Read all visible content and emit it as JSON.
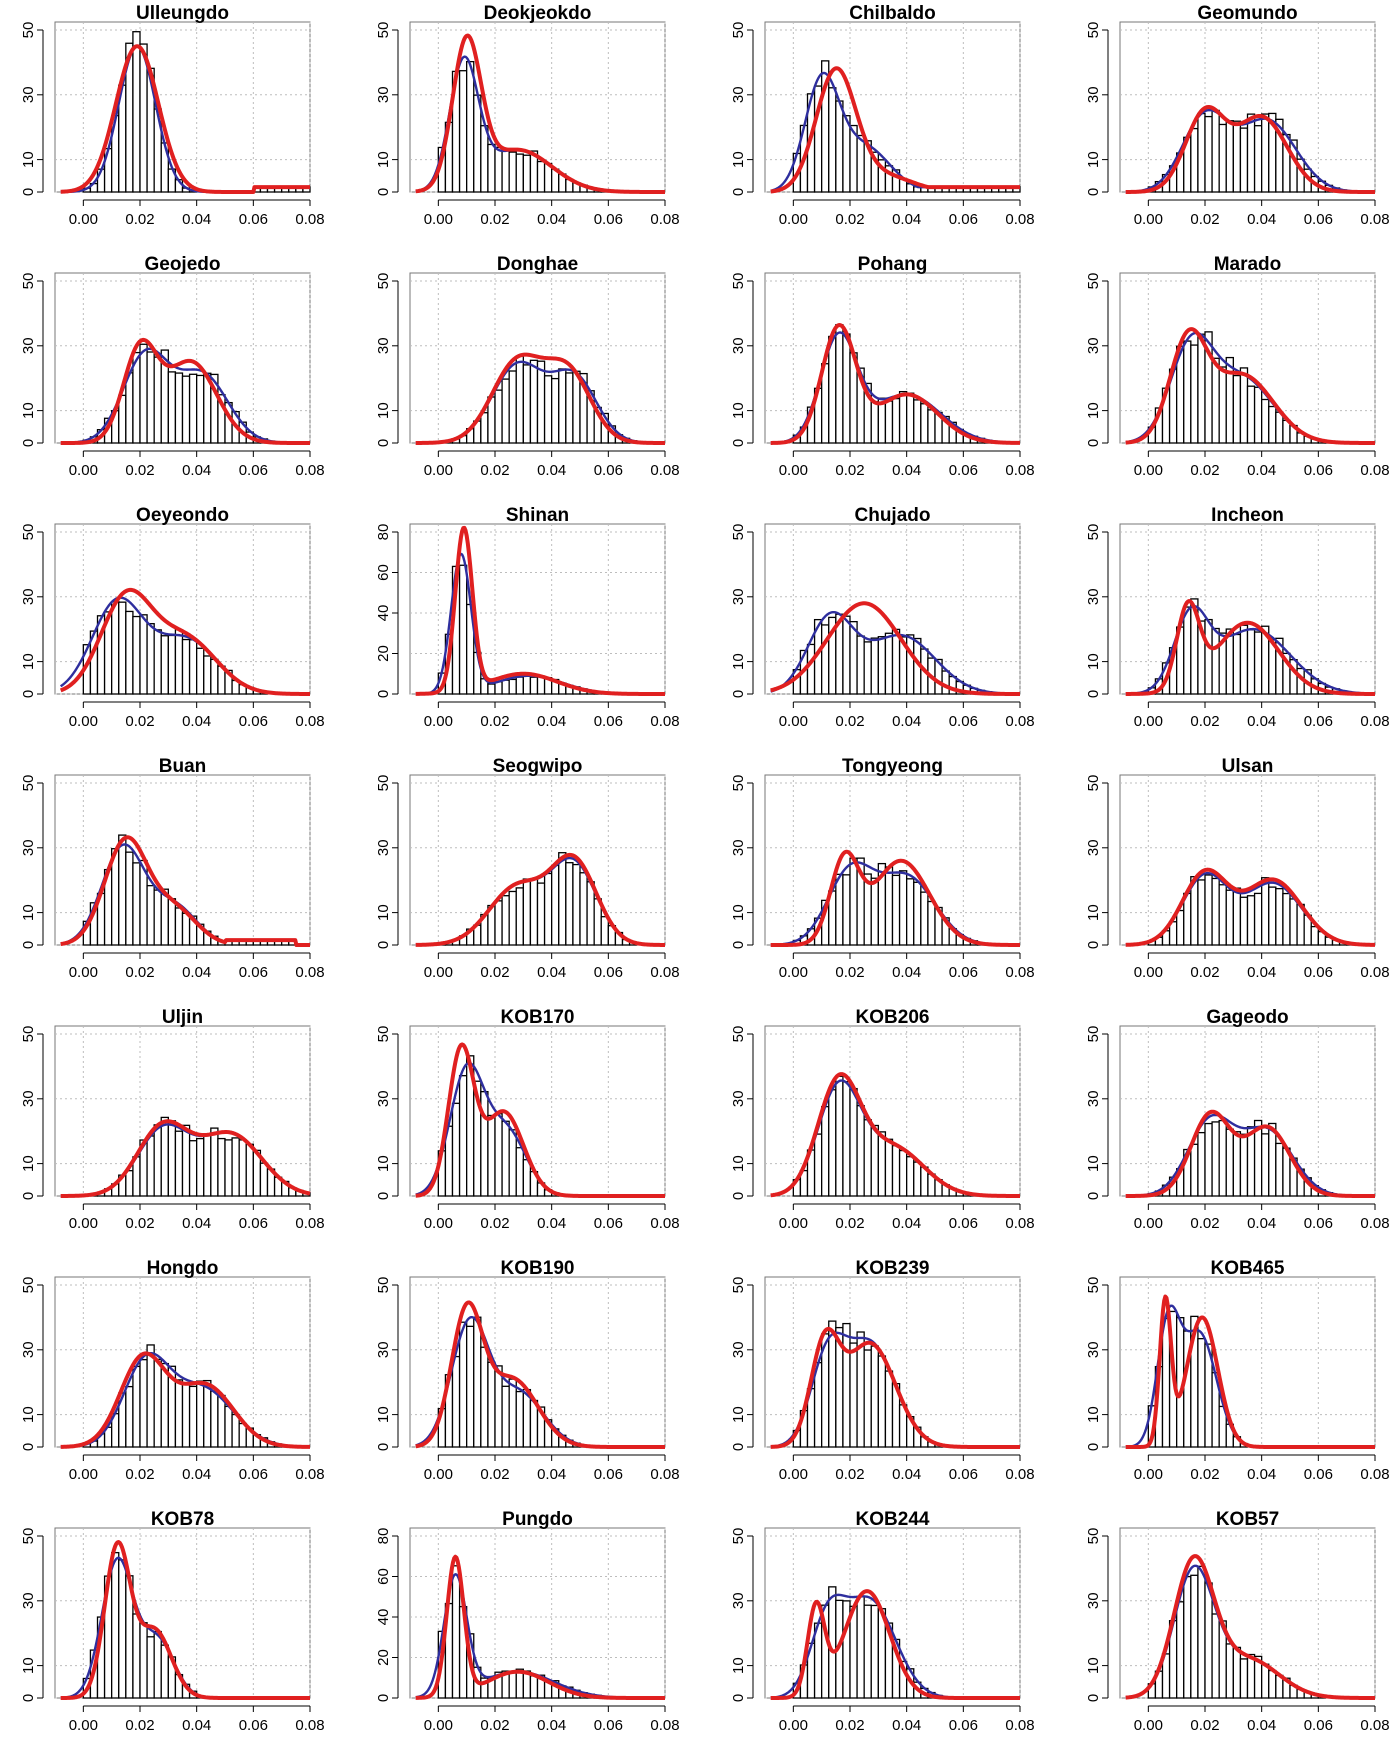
{
  "chart_data": {
    "type": "histogram-density",
    "rows": 7,
    "cols": 4,
    "xlim": [
      -0.01,
      0.08
    ],
    "x_ticks": [
      "0.00",
      "0.02",
      "0.04",
      "0.06",
      "0.08"
    ],
    "x_tick_values": [
      0.0,
      0.02,
      0.04,
      0.06,
      0.08
    ],
    "bin_width": 0.0025,
    "colors": {
      "density_blue": "#2e2e9e",
      "density_red": "#e02020",
      "bars": "#000000",
      "grid": "#bdbdbd"
    },
    "panels": [
      {
        "title": "Ulleungdo",
        "ylim": [
          0,
          50
        ],
        "y_ticks": [
          "0",
          "10",
          "30",
          "50"
        ],
        "y_tick_values": [
          0,
          10,
          30,
          50
        ],
        "blue": [
          [
            0.019,
            45,
            0.0065
          ]
        ],
        "red": [
          [
            0.019,
            45,
            0.0075
          ]
        ],
        "tail": [
          0.06,
          0.08,
          1.5
        ]
      },
      {
        "title": "Deokjeokdo",
        "ylim": [
          0,
          50
        ],
        "y_ticks": [
          "0",
          "10",
          "30",
          "50"
        ],
        "y_tick_values": [
          0,
          10,
          30,
          50
        ],
        "blue": [
          [
            0.009,
            38,
            0.005
          ],
          [
            0.028,
            13,
            0.012
          ]
        ],
        "red": [
          [
            0.01,
            44,
            0.005
          ],
          [
            0.028,
            13,
            0.012
          ]
        ]
      },
      {
        "title": "Chilbaldo",
        "ylim": [
          0,
          50
        ],
        "y_ticks": [
          "0",
          "10",
          "30",
          "50"
        ],
        "y_tick_values": [
          0,
          10,
          30,
          50
        ],
        "blue": [
          [
            0.01,
            33,
            0.006
          ],
          [
            0.025,
            14,
            0.009
          ]
        ],
        "red": [
          [
            0.015,
            37,
            0.007
          ],
          [
            0.032,
            5,
            0.01
          ]
        ],
        "tail": [
          0.04,
          0.08,
          1.5
        ]
      },
      {
        "title": "Geomundo",
        "ylim": [
          0,
          50
        ],
        "y_ticks": [
          "0",
          "10",
          "30",
          "50"
        ],
        "y_tick_values": [
          0,
          10,
          30,
          50
        ],
        "blue": [
          [
            0.02,
            23,
            0.008
          ],
          [
            0.042,
            22,
            0.01
          ]
        ],
        "red": [
          [
            0.02,
            24,
            0.007
          ],
          [
            0.04,
            23,
            0.009
          ]
        ]
      },
      {
        "title": "Geojedo",
        "ylim": [
          0,
          50
        ],
        "y_ticks": [
          "0",
          "10",
          "30",
          "50"
        ],
        "y_tick_values": [
          0,
          10,
          30,
          50
        ],
        "blue": [
          [
            0.022,
            27,
            0.008
          ],
          [
            0.042,
            21,
            0.009
          ]
        ],
        "red": [
          [
            0.02,
            28,
            0.006
          ],
          [
            0.038,
            25,
            0.009
          ]
        ]
      },
      {
        "title": "Donghae",
        "ylim": [
          0,
          50
        ],
        "y_ticks": [
          "0",
          "10",
          "30",
          "50"
        ],
        "y_tick_values": [
          0,
          10,
          30,
          50
        ],
        "blue": [
          [
            0.028,
            24,
            0.009
          ],
          [
            0.048,
            20,
            0.008
          ]
        ],
        "red": [
          [
            0.028,
            25,
            0.009
          ],
          [
            0.046,
            21,
            0.008
          ]
        ]
      },
      {
        "title": "Pohang",
        "ylim": [
          0,
          50
        ],
        "y_ticks": [
          "0",
          "10",
          "30",
          "50"
        ],
        "y_tick_values": [
          0,
          10,
          30,
          50
        ],
        "blue": [
          [
            0.016,
            32,
            0.0065
          ],
          [
            0.04,
            15,
            0.012
          ]
        ],
        "red": [
          [
            0.016,
            35,
            0.006
          ],
          [
            0.04,
            15,
            0.011
          ]
        ]
      },
      {
        "title": "Marado",
        "ylim": [
          0,
          50
        ],
        "y_ticks": [
          "0",
          "10",
          "30",
          "50"
        ],
        "y_tick_values": [
          0,
          10,
          30,
          50
        ],
        "blue": [
          [
            0.015,
            28,
            0.0075
          ],
          [
            0.033,
            20,
            0.011
          ]
        ],
        "red": [
          [
            0.014,
            30,
            0.0065
          ],
          [
            0.033,
            21,
            0.011
          ]
        ]
      },
      {
        "title": "Oeyeondo",
        "ylim": [
          0,
          50
        ],
        "y_ticks": [
          "0",
          "10",
          "30",
          "50"
        ],
        "y_tick_values": [
          0,
          10,
          30,
          50
        ],
        "blue": [
          [
            0.012,
            28,
            0.009
          ],
          [
            0.036,
            17,
            0.011
          ]
        ],
        "red": [
          [
            0.015,
            29,
            0.009
          ],
          [
            0.036,
            17,
            0.011
          ]
        ]
      },
      {
        "title": "Shinan",
        "ylim": [
          0,
          80
        ],
        "y_ticks": [
          "0",
          "20",
          "40",
          "60",
          "80"
        ],
        "y_tick_values": [
          0,
          20,
          40,
          60,
          80
        ],
        "blue": [
          [
            0.008,
            68,
            0.0035
          ],
          [
            0.032,
            9,
            0.012
          ]
        ],
        "red": [
          [
            0.009,
            80,
            0.003
          ],
          [
            0.03,
            10,
            0.012
          ]
        ]
      },
      {
        "title": "Chujado",
        "ylim": [
          0,
          50
        ],
        "y_ticks": [
          "0",
          "10",
          "30",
          "50"
        ],
        "y_tick_values": [
          0,
          10,
          30,
          50
        ],
        "blue": [
          [
            0.013,
            23,
            0.008
          ],
          [
            0.038,
            18,
            0.012
          ]
        ],
        "red": [
          [
            0.025,
            28,
            0.013
          ]
        ]
      },
      {
        "title": "Incheon",
        "ylim": [
          0,
          50
        ],
        "y_ticks": [
          "0",
          "10",
          "30",
          "50"
        ],
        "y_tick_values": [
          0,
          10,
          30,
          50
        ],
        "blue": [
          [
            0.015,
            22,
            0.006
          ],
          [
            0.037,
            20,
            0.013
          ]
        ],
        "red": [
          [
            0.014,
            25,
            0.004
          ],
          [
            0.035,
            22,
            0.011
          ]
        ]
      },
      {
        "title": "Buan",
        "ylim": [
          0,
          50
        ],
        "y_ticks": [
          "0",
          "10",
          "30",
          "50"
        ],
        "y_tick_values": [
          0,
          10,
          30,
          50
        ],
        "blue": [
          [
            0.014,
            30,
            0.0075
          ],
          [
            0.032,
            12,
            0.008
          ]
        ],
        "red": [
          [
            0.015,
            32,
            0.0075
          ],
          [
            0.032,
            11,
            0.008
          ]
        ],
        "tail": [
          0.05,
          0.075,
          1.5
        ]
      },
      {
        "title": "Seogwipo",
        "ylim": [
          0,
          50
        ],
        "y_ticks": [
          "0",
          "10",
          "30",
          "50"
        ],
        "y_tick_values": [
          0,
          10,
          30,
          50
        ],
        "blue": [
          [
            0.028,
            18,
            0.01
          ],
          [
            0.048,
            24,
            0.008
          ]
        ],
        "red": [
          [
            0.028,
            18,
            0.01
          ],
          [
            0.048,
            25,
            0.008
          ]
        ]
      },
      {
        "title": "Tongyeong",
        "ylim": [
          0,
          50
        ],
        "y_ticks": [
          "0",
          "10",
          "30",
          "50"
        ],
        "y_tick_values": [
          0,
          10,
          30,
          50
        ],
        "blue": [
          [
            0.02,
            22,
            0.008
          ],
          [
            0.04,
            21,
            0.01
          ]
        ],
        "red": [
          [
            0.018,
            25,
            0.005
          ],
          [
            0.038,
            26,
            0.01
          ]
        ]
      },
      {
        "title": "Ulsan",
        "ylim": [
          0,
          50
        ],
        "y_ticks": [
          "0",
          "10",
          "30",
          "50"
        ],
        "y_tick_values": [
          0,
          10,
          30,
          50
        ],
        "blue": [
          [
            0.02,
            21,
            0.008
          ],
          [
            0.044,
            19,
            0.01
          ]
        ],
        "red": [
          [
            0.02,
            22,
            0.008
          ],
          [
            0.044,
            20,
            0.01
          ]
        ]
      },
      {
        "title": "Uljin",
        "ylim": [
          0,
          50
        ],
        "y_ticks": [
          "0",
          "10",
          "30",
          "50"
        ],
        "y_tick_values": [
          0,
          10,
          30,
          50
        ],
        "blue": [
          [
            0.028,
            20,
            0.009
          ],
          [
            0.052,
            19,
            0.011
          ]
        ],
        "red": [
          [
            0.028,
            21,
            0.009
          ],
          [
            0.052,
            19,
            0.011
          ]
        ]
      },
      {
        "title": "KOB170",
        "ylim": [
          0,
          50
        ],
        "y_ticks": [
          "0",
          "10",
          "30",
          "50"
        ],
        "y_tick_values": [
          0,
          10,
          30,
          50
        ],
        "blue": [
          [
            0.01,
            38,
            0.006
          ],
          [
            0.024,
            20,
            0.007
          ]
        ],
        "red": [
          [
            0.008,
            44,
            0.0045
          ],
          [
            0.023,
            26,
            0.007
          ]
        ]
      },
      {
        "title": "KOB206",
        "ylim": [
          0,
          50
        ],
        "y_ticks": [
          "0",
          "10",
          "30",
          "50"
        ],
        "y_tick_values": [
          0,
          10,
          30,
          50
        ],
        "blue": [
          [
            0.016,
            32,
            0.0075
          ],
          [
            0.035,
            15,
            0.011
          ]
        ],
        "red": [
          [
            0.016,
            34,
            0.0075
          ],
          [
            0.035,
            15,
            0.011
          ]
        ]
      },
      {
        "title": "Gageodo",
        "ylim": [
          0,
          50
        ],
        "y_ticks": [
          "0",
          "10",
          "30",
          "50"
        ],
        "y_tick_values": [
          0,
          10,
          30,
          50
        ],
        "blue": [
          [
            0.022,
            23,
            0.008
          ],
          [
            0.042,
            20,
            0.009
          ]
        ],
        "red": [
          [
            0.022,
            25,
            0.007
          ],
          [
            0.042,
            21,
            0.008
          ]
        ]
      },
      {
        "title": "Hongdo",
        "ylim": [
          0,
          50
        ],
        "y_ticks": [
          "0",
          "10",
          "30",
          "50"
        ],
        "y_tick_values": [
          0,
          10,
          30,
          50
        ],
        "blue": [
          [
            0.022,
            25,
            0.008
          ],
          [
            0.042,
            18,
            0.011
          ]
        ],
        "red": [
          [
            0.021,
            27,
            0.008
          ],
          [
            0.043,
            19,
            0.01
          ]
        ]
      },
      {
        "title": "KOB190",
        "ylim": [
          0,
          50
        ],
        "y_ticks": [
          "0",
          "10",
          "30",
          "50"
        ],
        "y_tick_values": [
          0,
          10,
          30,
          50
        ],
        "blue": [
          [
            0.011,
            37,
            0.0065
          ],
          [
            0.028,
            17,
            0.009
          ]
        ],
        "red": [
          [
            0.01,
            40,
            0.0055
          ],
          [
            0.026,
            21,
            0.009
          ]
        ]
      },
      {
        "title": "KOB239",
        "ylim": [
          0,
          50
        ],
        "y_ticks": [
          "0",
          "10",
          "30",
          "50"
        ],
        "y_tick_values": [
          0,
          10,
          30,
          50
        ],
        "blue": [
          [
            0.012,
            25,
            0.006
          ],
          [
            0.027,
            32,
            0.009
          ]
        ],
        "red": [
          [
            0.011,
            29,
            0.005
          ],
          [
            0.027,
            32,
            0.009
          ]
        ]
      },
      {
        "title": "KOB465",
        "ylim": [
          0,
          50
        ],
        "y_ticks": [
          "0",
          "10",
          "30",
          "50"
        ],
        "y_tick_values": [
          0,
          10,
          30,
          50
        ],
        "blue": [
          [
            0.007,
            36,
            0.004
          ],
          [
            0.018,
            35,
            0.006
          ]
        ],
        "red": [
          [
            0.006,
            44,
            0.002
          ],
          [
            0.019,
            40,
            0.0055
          ]
        ]
      },
      {
        "title": "KOB78",
        "ylim": [
          0,
          50
        ],
        "y_ticks": [
          "0",
          "10",
          "30",
          "50"
        ],
        "y_tick_values": [
          0,
          10,
          30,
          50
        ],
        "blue": [
          [
            0.012,
            42,
            0.0055
          ],
          [
            0.026,
            18,
            0.006
          ]
        ],
        "red": [
          [
            0.012,
            46,
            0.0045
          ],
          [
            0.025,
            21,
            0.006
          ]
        ]
      },
      {
        "title": "Pungdo",
        "ylim": [
          0,
          80
        ],
        "y_ticks": [
          "0",
          "20",
          "40",
          "60",
          "80"
        ],
        "y_tick_values": [
          0,
          20,
          40,
          60,
          80
        ],
        "blue": [
          [
            0.006,
            58,
            0.004
          ],
          [
            0.028,
            13,
            0.013
          ]
        ],
        "red": [
          [
            0.006,
            68,
            0.003
          ],
          [
            0.028,
            13,
            0.011
          ]
        ]
      },
      {
        "title": "KOB244",
        "ylim": [
          0,
          50
        ],
        "y_ticks": [
          "0",
          "10",
          "30",
          "50"
        ],
        "y_tick_values": [
          0,
          10,
          30,
          50
        ],
        "blue": [
          [
            0.012,
            22,
            0.006
          ],
          [
            0.027,
            30,
            0.009
          ]
        ],
        "red": [
          [
            0.008,
            27,
            0.003
          ],
          [
            0.026,
            33,
            0.008
          ]
        ]
      },
      {
        "title": "KOB57",
        "ylim": [
          0,
          50
        ],
        "y_ticks": [
          "0",
          "10",
          "30",
          "50"
        ],
        "y_tick_values": [
          0,
          10,
          30,
          50
        ],
        "blue": [
          [
            0.016,
            38,
            0.007
          ],
          [
            0.035,
            12,
            0.011
          ]
        ],
        "red": [
          [
            0.016,
            41,
            0.007
          ],
          [
            0.035,
            12,
            0.011
          ]
        ]
      }
    ]
  }
}
